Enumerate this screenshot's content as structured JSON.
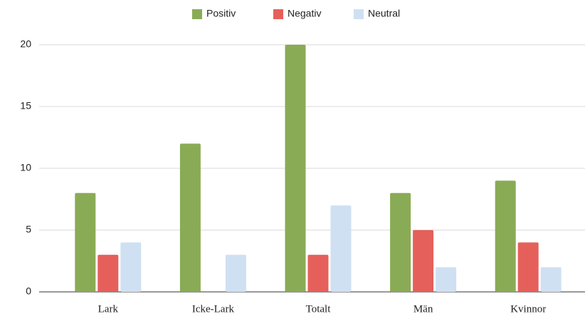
{
  "chart_data": {
    "type": "bar",
    "categories": [
      "Lark",
      "Icke-Lark",
      "Totalt",
      "Män",
      "Kvinnor"
    ],
    "series": [
      {
        "name": "Positiv",
        "color": "#8aab55",
        "values": [
          8,
          12,
          20,
          8,
          9
        ]
      },
      {
        "name": "Negativ",
        "color": "#e5605a",
        "values": [
          3,
          0,
          3,
          5,
          4
        ]
      },
      {
        "name": "Neutral",
        "color": "#cfe0f3",
        "values": [
          4,
          3,
          7,
          2,
          2
        ]
      }
    ],
    "ylim": [
      0,
      20
    ],
    "yticks": [
      0,
      5,
      10,
      15,
      20
    ],
    "grid": true,
    "legend": "top"
  }
}
